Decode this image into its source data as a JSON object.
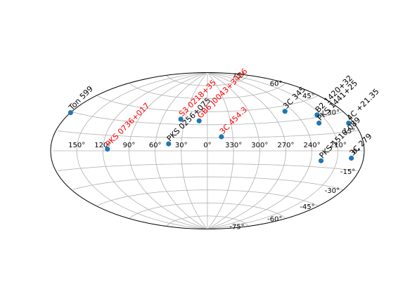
{
  "chart_data": {
    "type": "scatter",
    "projection": "aitoff",
    "grid": true,
    "lon_ticks": [
      "150°",
      "120°",
      "90°",
      "60°",
      "30°",
      "0°",
      "330°",
      "300°",
      "270°",
      "240°",
      "210°"
    ],
    "lat_ticks": [
      "75°",
      "60°",
      "45°",
      "30°",
      "15°",
      "0°",
      "-15°",
      "-30°",
      "-45°",
      "-60°",
      "-75°"
    ],
    "marker_color": "#1f77b4",
    "points": [
      {
        "label": "B2 1420+32",
        "ra": 215.0,
        "dec": 32.0,
        "color": "#000000"
      },
      {
        "label": "PKS 1441+25",
        "ra": 220.9,
        "dec": 25.0,
        "color": "#000000"
      },
      {
        "label": "3C 345",
        "ra": 250.7,
        "dec": 39.8,
        "color": "#000000"
      },
      {
        "label": "4C +21.35",
        "ra": 186.2,
        "dec": 21.4,
        "color": "#000000"
      },
      {
        "label": "Ton 599",
        "ra": 179.9,
        "dec": 29.2,
        "color": "#000000"
      },
      {
        "label": "3C 279",
        "ra": 194.0,
        "dec": -5.8,
        "color": "#000000"
      },
      {
        "label": "PKS 1510-089",
        "ra": 228.2,
        "dec": -9.1,
        "color": "#000000"
      },
      {
        "label": "PKS 0736+017",
        "ra": 114.8,
        "dec": 1.6,
        "color": "#ff0000"
      },
      {
        "label": "S3 0218+35",
        "ra": 35.3,
        "dec": 35.9,
        "color": "#ff0000"
      },
      {
        "label": "GB6 J0043+3426",
        "ra": 10.9,
        "dec": 34.4,
        "color": "#ff0000"
      },
      {
        "label": "PKS 0256+075",
        "ra": 44.8,
        "dec": 7.8,
        "color": "#000000"
      },
      {
        "label": "3C 454.3",
        "ra": 343.5,
        "dec": 16.1,
        "color": "#ff0000"
      }
    ]
  }
}
